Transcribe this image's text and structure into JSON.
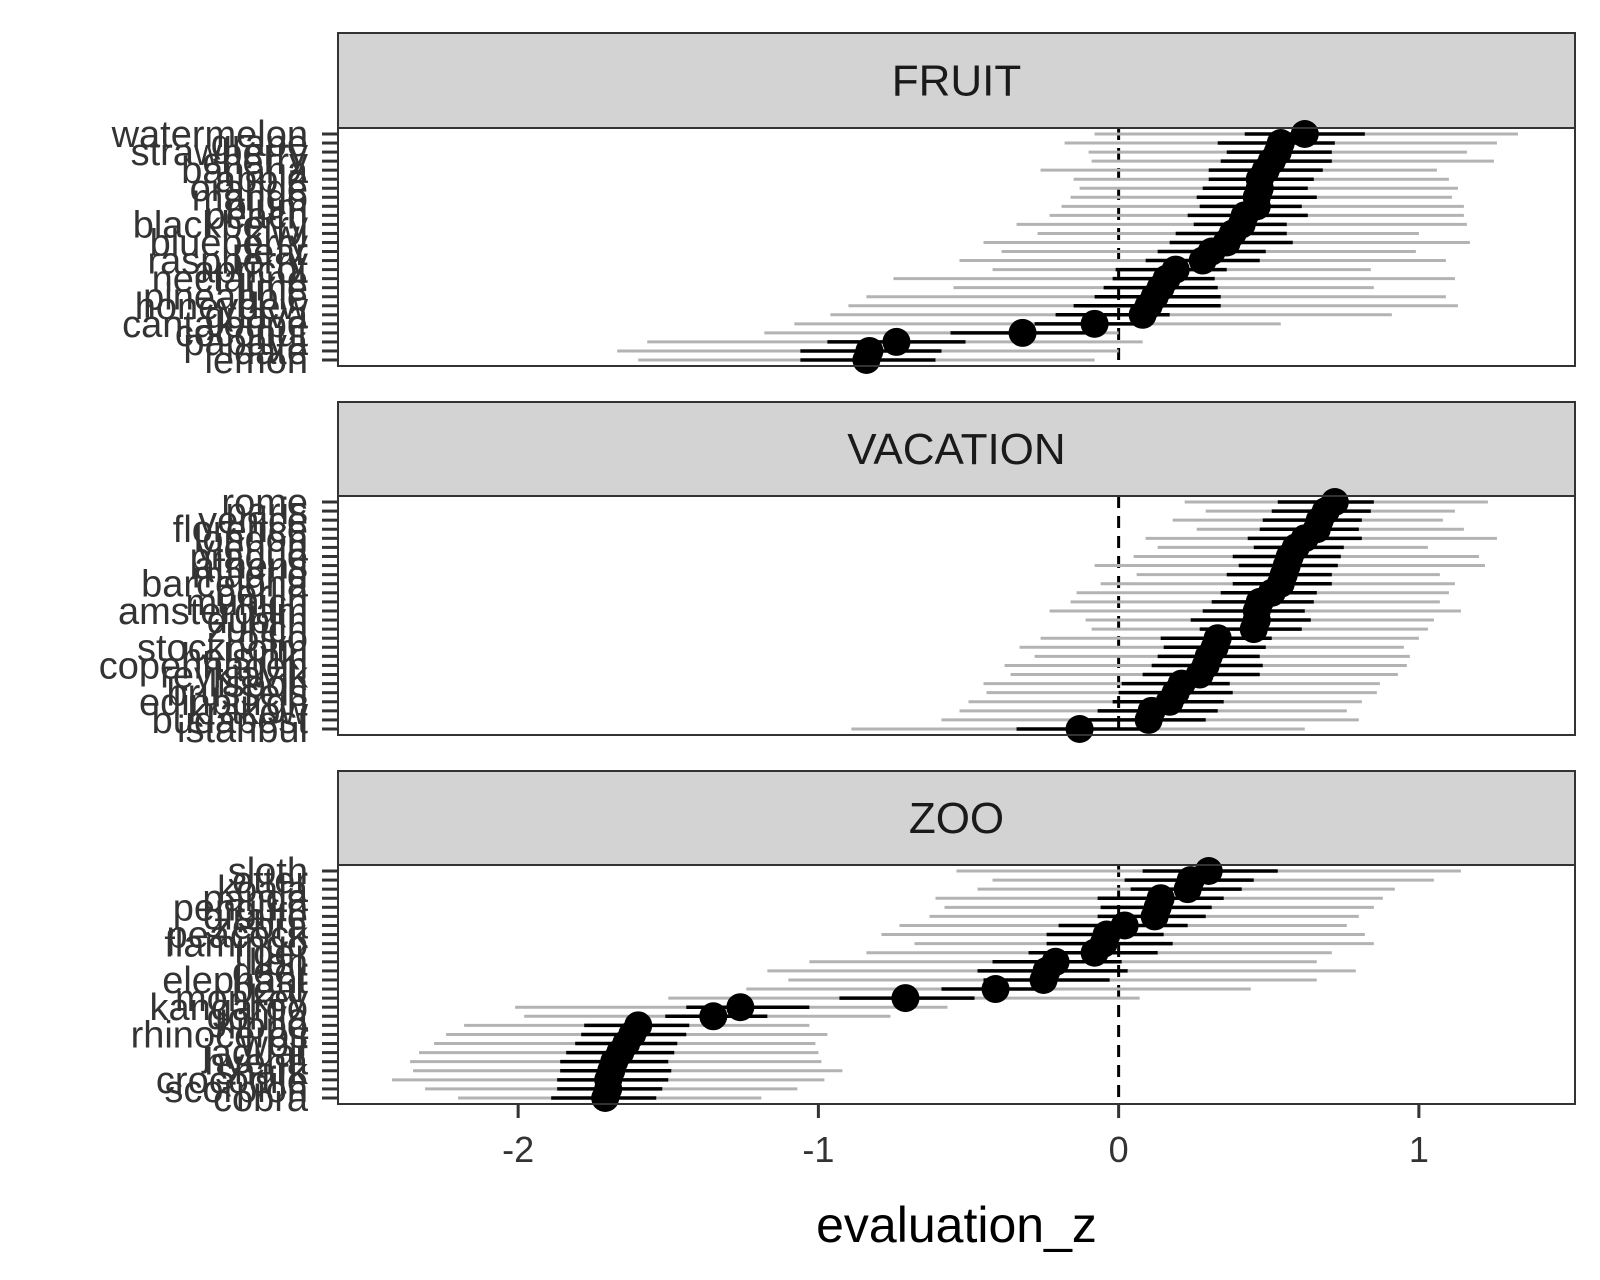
{
  "chart_data": {
    "type": "scatter",
    "xlabel": "evaluation_z",
    "ylabel": "",
    "xlim": [
      -2.6,
      1.52
    ],
    "x_ticks": [
      -2,
      -1,
      0,
      1
    ],
    "x_tick_labels": [
      "-2",
      "-1",
      "0",
      "1"
    ],
    "reference_line_x": 0,
    "grid": false,
    "legend": "none",
    "colors": {
      "point": "#000000",
      "inner_interval": "#000000",
      "outer_interval": "#b3b3b3",
      "strip_fill": "#d3d3d3",
      "reference_line": "#000000"
    },
    "panels": [
      {
        "title": "FRUIT",
        "items": [
          {
            "label": "watermelon",
            "mean": 0.62,
            "inner": [
              0.42,
              0.82
            ],
            "outer": [
              -0.08,
              1.33
            ]
          },
          {
            "label": "grape",
            "mean": 0.54,
            "inner": [
              0.33,
              0.72
            ],
            "outer": [
              -0.18,
              1.26
            ]
          },
          {
            "label": "strawberry",
            "mean": 0.53,
            "inner": [
              0.36,
              0.71
            ],
            "outer": [
              -0.1,
              1.16
            ]
          },
          {
            "label": "cherry",
            "mean": 0.51,
            "inner": [
              0.34,
              0.71
            ],
            "outer": [
              -0.09,
              1.25
            ]
          },
          {
            "label": "banana",
            "mean": 0.49,
            "inner": [
              0.3,
              0.68
            ],
            "outer": [
              -0.26,
              1.06
            ]
          },
          {
            "label": "apple",
            "mean": 0.47,
            "inner": [
              0.3,
              0.65
            ],
            "outer": [
              -0.15,
              1.1
            ]
          },
          {
            "label": "orange",
            "mean": 0.47,
            "inner": [
              0.28,
              0.63
            ],
            "outer": [
              -0.13,
              1.13
            ]
          },
          {
            "label": "mango",
            "mean": 0.46,
            "inner": [
              0.26,
              0.66
            ],
            "outer": [
              -0.16,
              1.11
            ]
          },
          {
            "label": "plum",
            "mean": 0.46,
            "inner": [
              0.27,
              0.61
            ],
            "outer": [
              -0.19,
              1.15
            ]
          },
          {
            "label": "peach",
            "mean": 0.42,
            "inner": [
              0.23,
              0.63
            ],
            "outer": [
              -0.23,
              1.15
            ]
          },
          {
            "label": "blackberry",
            "mean": 0.41,
            "inner": [
              0.25,
              0.56
            ],
            "outer": [
              -0.34,
              1.16
            ]
          },
          {
            "label": "kiwi",
            "mean": 0.38,
            "inner": [
              0.19,
              0.56
            ],
            "outer": [
              -0.27,
              1.0
            ]
          },
          {
            "label": "blueberry",
            "mean": 0.36,
            "inner": [
              0.17,
              0.58
            ],
            "outer": [
              -0.45,
              1.17
            ]
          },
          {
            "label": "pear",
            "mean": 0.31,
            "inner": [
              0.13,
              0.49
            ],
            "outer": [
              -0.39,
              0.99
            ]
          },
          {
            "label": "raspberry",
            "mean": 0.28,
            "inner": [
              0.09,
              0.47
            ],
            "outer": [
              -0.53,
              1.09
            ]
          },
          {
            "label": "apricot",
            "mean": 0.19,
            "inner": [
              -0.01,
              0.36
            ],
            "outer": [
              -0.42,
              0.84
            ]
          },
          {
            "label": "nectarine",
            "mean": 0.16,
            "inner": [
              -0.02,
              0.32
            ],
            "outer": [
              -0.75,
              1.12
            ]
          },
          {
            "label": "lime",
            "mean": 0.14,
            "inner": [
              -0.05,
              0.33
            ],
            "outer": [
              -0.55,
              0.85
            ]
          },
          {
            "label": "pineapple",
            "mean": 0.12,
            "inner": [
              -0.08,
              0.34
            ],
            "outer": [
              -0.84,
              1.09
            ]
          },
          {
            "label": "honeydew",
            "mean": 0.1,
            "inner": [
              -0.15,
              0.34
            ],
            "outer": [
              -0.9,
              1.13
            ]
          },
          {
            "label": "guava",
            "mean": 0.08,
            "inner": [
              -0.21,
              0.17
            ],
            "outer": [
              -0.96,
              0.91
            ]
          },
          {
            "label": "cantaloupe",
            "mean": -0.08,
            "inner": [
              -0.28,
              0.1
            ],
            "outer": [
              -1.08,
              0.54
            ]
          },
          {
            "label": "coconut",
            "mean": -0.32,
            "inner": [
              -0.56,
              -0.09
            ],
            "outer": [
              -1.18,
              0.0
            ]
          },
          {
            "label": "papaya",
            "mean": -0.74,
            "inner": [
              -0.97,
              -0.51
            ],
            "outer": [
              -1.57,
              0.08
            ]
          },
          {
            "label": "date",
            "mean": -0.83,
            "inner": [
              -1.06,
              -0.59
            ],
            "outer": [
              -1.67,
              0.0
            ]
          },
          {
            "label": "lemon",
            "mean": -0.84,
            "inner": [
              -1.06,
              -0.61
            ],
            "outer": [
              -1.6,
              -0.08
            ]
          }
        ]
      },
      {
        "title": "VACATION",
        "items": [
          {
            "label": "rome",
            "mean": 0.72,
            "inner": [
              0.53,
              0.85
            ],
            "outer": [
              0.22,
              1.23
            ]
          },
          {
            "label": "paris",
            "mean": 0.69,
            "inner": [
              0.51,
              0.84
            ],
            "outer": [
              0.29,
              1.12
            ]
          },
          {
            "label": "venice",
            "mean": 0.67,
            "inner": [
              0.48,
              0.81
            ],
            "outer": [
              0.18,
              1.08
            ]
          },
          {
            "label": "florence",
            "mean": 0.66,
            "inner": [
              0.47,
              0.8
            ],
            "outer": [
              0.26,
              1.15
            ]
          },
          {
            "label": "london",
            "mean": 0.62,
            "inner": [
              0.43,
              0.81
            ],
            "outer": [
              0.09,
              1.26
            ]
          },
          {
            "label": "vienna",
            "mean": 0.59,
            "inner": [
              0.45,
              0.75
            ],
            "outer": [
              0.13,
              1.03
            ]
          },
          {
            "label": "prague",
            "mean": 0.57,
            "inner": [
              0.38,
              0.74
            ],
            "outer": [
              0.05,
              1.2
            ]
          },
          {
            "label": "athens",
            "mean": 0.56,
            "inner": [
              0.4,
              0.73
            ],
            "outer": [
              -0.08,
              1.22
            ]
          },
          {
            "label": "madrid",
            "mean": 0.55,
            "inner": [
              0.36,
              0.71
            ],
            "outer": [
              0.06,
              1.07
            ]
          },
          {
            "label": "barcelona",
            "mean": 0.54,
            "inner": [
              0.38,
              0.71
            ],
            "outer": [
              -0.06,
              1.12
            ]
          },
          {
            "label": "berlin",
            "mean": 0.51,
            "inner": [
              0.34,
              0.66
            ],
            "outer": [
              -0.14,
              1.1
            ]
          },
          {
            "label": "munich",
            "mean": 0.47,
            "inner": [
              0.31,
              0.65
            ],
            "outer": [
              -0.16,
              1.07
            ]
          },
          {
            "label": "amsterdam",
            "mean": 0.46,
            "inner": [
              0.28,
              0.62
            ],
            "outer": [
              -0.23,
              1.14
            ]
          },
          {
            "label": "dublin",
            "mean": 0.46,
            "inner": [
              0.24,
              0.64
            ],
            "outer": [
              -0.11,
              1.05
            ]
          },
          {
            "label": "zurich",
            "mean": 0.45,
            "inner": [
              0.27,
              0.61
            ],
            "outer": [
              -0.09,
              1.03
            ]
          },
          {
            "label": "oslo",
            "mean": 0.33,
            "inner": [
              0.14,
              0.51
            ],
            "outer": [
              -0.26,
              1.0
            ]
          },
          {
            "label": "stockholm",
            "mean": 0.32,
            "inner": [
              0.15,
              0.49
            ],
            "outer": [
              -0.33,
              0.95
            ]
          },
          {
            "label": "helsinki",
            "mean": 0.3,
            "inner": [
              0.13,
              0.47
            ],
            "outer": [
              -0.28,
              0.97
            ]
          },
          {
            "label": "copenhagen",
            "mean": 0.29,
            "inner": [
              0.11,
              0.48
            ],
            "outer": [
              -0.38,
              0.96
            ]
          },
          {
            "label": "reykjavik",
            "mean": 0.27,
            "inner": [
              0.08,
              0.47
            ],
            "outer": [
              -0.36,
              0.93
            ]
          },
          {
            "label": "lisbon",
            "mean": 0.21,
            "inner": [
              0.01,
              0.37
            ],
            "outer": [
              -0.45,
              0.87
            ]
          },
          {
            "label": "brussels",
            "mean": 0.19,
            "inner": [
              0.0,
              0.38
            ],
            "outer": [
              -0.44,
              0.86
            ]
          },
          {
            "label": "edinburgh",
            "mean": 0.17,
            "inner": [
              -0.02,
              0.35
            ],
            "outer": [
              -0.5,
              0.81
            ]
          },
          {
            "label": "krakow",
            "mean": 0.11,
            "inner": [
              -0.07,
              0.33
            ],
            "outer": [
              -0.53,
              0.76
            ]
          },
          {
            "label": "budapest",
            "mean": 0.1,
            "inner": [
              -0.11,
              0.29
            ],
            "outer": [
              -0.59,
              0.8
            ]
          },
          {
            "label": "istanbul",
            "mean": -0.13,
            "inner": [
              -0.34,
              0.08
            ],
            "outer": [
              -0.89,
              0.62
            ]
          }
        ]
      },
      {
        "title": "ZOO",
        "items": [
          {
            "label": "sloth",
            "mean": 0.3,
            "inner": [
              0.08,
              0.53
            ],
            "outer": [
              -0.54,
              1.14
            ]
          },
          {
            "label": "otter",
            "mean": 0.24,
            "inner": [
              0.02,
              0.45
            ],
            "outer": [
              -0.42,
              1.05
            ]
          },
          {
            "label": "koala",
            "mean": 0.23,
            "inner": [
              0.04,
              0.41
            ],
            "outer": [
              -0.47,
              0.92
            ]
          },
          {
            "label": "panda",
            "mean": 0.14,
            "inner": [
              -0.07,
              0.35
            ],
            "outer": [
              -0.61,
              0.88
            ]
          },
          {
            "label": "penguin",
            "mean": 0.13,
            "inner": [
              -0.06,
              0.31
            ],
            "outer": [
              -0.58,
              0.85
            ]
          },
          {
            "label": "giraffe",
            "mean": 0.12,
            "inner": [
              -0.07,
              0.29
            ],
            "outer": [
              -0.63,
              0.8
            ]
          },
          {
            "label": "zebra",
            "mean": 0.02,
            "inner": [
              -0.2,
              0.23
            ],
            "outer": [
              -0.73,
              0.76
            ]
          },
          {
            "label": "peacock",
            "mean": -0.04,
            "inner": [
              -0.24,
              0.15
            ],
            "outer": [
              -0.79,
              0.82
            ]
          },
          {
            "label": "flamingo",
            "mean": -0.05,
            "inner": [
              -0.24,
              0.18
            ],
            "outer": [
              -0.68,
              0.85
            ]
          },
          {
            "label": "tiger",
            "mean": -0.08,
            "inner": [
              -0.3,
              0.13
            ],
            "outer": [
              -0.84,
              0.71
            ]
          },
          {
            "label": "lion",
            "mean": -0.21,
            "inner": [
              -0.42,
              0.01
            ],
            "outer": [
              -1.03,
              0.66
            ]
          },
          {
            "label": "deer",
            "mean": -0.24,
            "inner": [
              -0.47,
              0.03
            ],
            "outer": [
              -1.17,
              0.79
            ]
          },
          {
            "label": "elephant",
            "mean": -0.25,
            "inner": [
              -0.45,
              -0.03
            ],
            "outer": [
              -1.1,
              0.66
            ]
          },
          {
            "label": "bear",
            "mean": -0.41,
            "inner": [
              -0.59,
              -0.22
            ],
            "outer": [
              -1.24,
              0.44
            ]
          },
          {
            "label": "monkey",
            "mean": -0.71,
            "inner": [
              -0.93,
              -0.48
            ],
            "outer": [
              -1.5,
              0.07
            ]
          },
          {
            "label": "kangaroo",
            "mean": -1.26,
            "inner": [
              -1.44,
              -1.03
            ],
            "outer": [
              -2.01,
              -0.57
            ]
          },
          {
            "label": "gorilla",
            "mean": -1.35,
            "inner": [
              -1.51,
              -1.17
            ],
            "outer": [
              -1.98,
              -0.76
            ]
          },
          {
            "label": "hippo",
            "mean": -1.6,
            "inner": [
              -1.78,
              -1.43
            ],
            "outer": [
              -2.18,
              -1.03
            ]
          },
          {
            "label": "rhinoceros",
            "mean": -1.62,
            "inner": [
              -1.79,
              -1.44
            ],
            "outer": [
              -2.24,
              -0.97
            ]
          },
          {
            "label": "wolf",
            "mean": -1.64,
            "inner": [
              -1.81,
              -1.47
            ],
            "outer": [
              -2.28,
              -1.01
            ]
          },
          {
            "label": "jaguar",
            "mean": -1.66,
            "inner": [
              -1.84,
              -1.48
            ],
            "outer": [
              -2.33,
              -1.0
            ]
          },
          {
            "label": "hyena",
            "mean": -1.68,
            "inner": [
              -1.86,
              -1.5
            ],
            "outer": [
              -2.36,
              -0.99
            ]
          },
          {
            "label": "shark",
            "mean": -1.69,
            "inner": [
              -1.86,
              -1.49
            ],
            "outer": [
              -2.35,
              -0.92
            ]
          },
          {
            "label": "crocodile",
            "mean": -1.7,
            "inner": [
              -1.87,
              -1.5
            ],
            "outer": [
              -2.42,
              -0.98
            ]
          },
          {
            "label": "scorpion",
            "mean": -1.7,
            "inner": [
              -1.87,
              -1.52
            ],
            "outer": [
              -2.31,
              -1.07
            ]
          },
          {
            "label": "cobra",
            "mean": -1.71,
            "inner": [
              -1.89,
              -1.54
            ],
            "outer": [
              -2.2,
              -1.19
            ]
          }
        ]
      }
    ]
  }
}
